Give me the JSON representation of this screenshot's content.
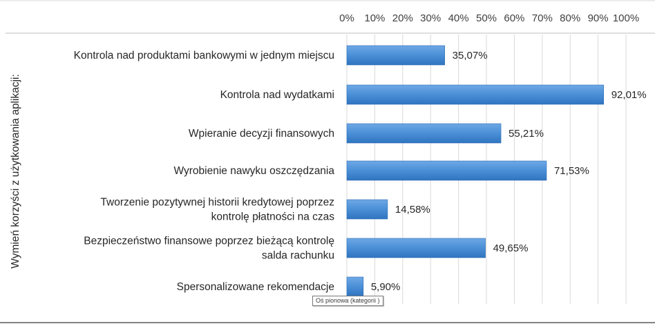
{
  "chart_data": {
    "type": "bar",
    "orientation": "horizontal",
    "categories": [
      [
        "Kontrola nad produktami bankowymi w jednym miejscu"
      ],
      [
        "Kontrola nad wydatkami"
      ],
      [
        "Wpieranie decyzji finansowych"
      ],
      [
        "Wyrobienie nawyku oszczędzania"
      ],
      [
        "Tworzenie pozytywnej historii kredytowej poprzez",
        "kontrolę płatności na czas"
      ],
      [
        "Bezpieczeństwo finansowe poprzez bieżącą kontrolę",
        "salda rachunku"
      ],
      [
        "Spersonalizowane rekomendacje"
      ]
    ],
    "values": [
      35.07,
      92.01,
      55.21,
      71.53,
      14.58,
      49.65,
      5.9
    ],
    "data_labels": [
      "35,07%",
      "92,01%",
      "55,21%",
      "71,53%",
      "14,58%",
      "49,65%",
      "5,90%"
    ],
    "xlim": [
      0,
      100
    ],
    "x_ticks": [
      0,
      10,
      20,
      30,
      40,
      50,
      60,
      70,
      80,
      90,
      100
    ],
    "x_tick_labels": [
      "0%",
      "10%",
      "20%",
      "30%",
      "40%",
      "50%",
      "60%",
      "70%",
      "80%",
      "90%",
      "100%"
    ],
    "x_axis_position": "top",
    "ylabel": "Wymień korzyści z użytkowania aplikacji:",
    "xlabel": "",
    "title": "",
    "grid": true,
    "bar_color": "#4a8fd6",
    "legend": "none"
  },
  "tooltip": {
    "text": "Oś pionowa  (kategorii )"
  }
}
